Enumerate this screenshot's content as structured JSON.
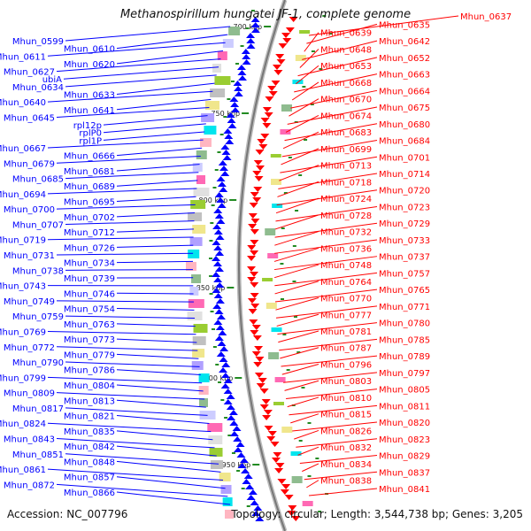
{
  "title": "Methanospirillum hungatei JF-1, complete genome",
  "footer": {
    "accession": "Accession: NC_007796",
    "summary": "Topology: circular; Length: 3,544,738 bp; Genes: 3,205"
  },
  "colors": {
    "forward_strand": "#0000ff",
    "reverse_strand": "#ff0000",
    "backbone": "#999999",
    "tick": "#228b22"
  },
  "scale_ticks": [
    "700 kbp",
    "750 kbp",
    "800 kbp",
    "850 kbp",
    "900 kbp",
    "950 kbp"
  ],
  "left_labels": [
    "Mhun_0599",
    "Mhun_0610",
    "Mhun_0611",
    "Mhun_0620",
    "Mhun_0627",
    "ubiA",
    "Mhun_0634",
    "Mhun_0633",
    "Mhun_0640",
    "Mhun_0641",
    "Mhun_0645",
    "rpl12p",
    "rplP0",
    "rpl1P",
    "Mhun_0667",
    "Mhun_0666",
    "Mhun_0679",
    "Mhun_0681",
    "Mhun_0685",
    "Mhun_0689",
    "Mhun_0694",
    "Mhun_0695",
    "Mhun_0700",
    "Mhun_0702",
    "Mhun_0707",
    "Mhun_0712",
    "Mhun_0719",
    "Mhun_0726",
    "Mhun_0731",
    "Mhun_0734",
    "Mhun_0738",
    "Mhun_0739",
    "Mhun_0743",
    "Mhun_0746",
    "Mhun_0749",
    "Mhun_0754",
    "Mhun_0759",
    "Mhun_0763",
    "Mhun_0769",
    "Mhun_0773",
    "Mhun_0772",
    "Mhun_0779",
    "Mhun_0790",
    "Mhun_0786",
    "Mhun_0799",
    "Mhun_0804",
    "Mhun_0809",
    "Mhun_0813",
    "Mhun_0817",
    "Mhun_0821",
    "Mhun_0824",
    "Mhun_0835",
    "Mhun_0843",
    "Mhun_0842",
    "Mhun_0851",
    "Mhun_0848",
    "Mhun_0861",
    "Mhun_0857",
    "Mhun_0872",
    "Mhun_0866"
  ],
  "right_labels": [
    "Mhun_0637",
    "Mhun_0635",
    "Mhun_0639",
    "Mhun_0642",
    "Mhun_0648",
    "Mhun_0652",
    "Mhun_0653",
    "Mhun_0663",
    "Mhun_0668",
    "Mhun_0664",
    "Mhun_0670",
    "Mhun_0675",
    "Mhun_0674",
    "Mhun_0680",
    "Mhun_0683",
    "Mhun_0684",
    "Mhun_0699",
    "Mhun_0701",
    "Mhun_0713",
    "Mhun_0714",
    "Mhun_0718",
    "Mhun_0720",
    "Mhun_0724",
    "Mhun_0723",
    "Mhun_0728",
    "Mhun_0729",
    "Mhun_0732",
    "Mhun_0733",
    "Mhun_0736",
    "Mhun_0737",
    "Mhun_0748",
    "Mhun_0757",
    "Mhun_0764",
    "Mhun_0765",
    "Mhun_0770",
    "Mhun_0771",
    "Mhun_0777",
    "Mhun_0780",
    "Mhun_0781",
    "Mhun_0785",
    "Mhun_0787",
    "Mhun_0789",
    "Mhun_0796",
    "Mhun_0797",
    "Mhun_0803",
    "Mhun_0805",
    "Mhun_0810",
    "Mhun_0811",
    "Mhun_0815",
    "Mhun_0820",
    "Mhun_0826",
    "Mhun_0823",
    "Mhun_0832",
    "Mhun_0829",
    "Mhun_0834",
    "Mhun_0837",
    "Mhun_0838",
    "Mhun_0841"
  ]
}
